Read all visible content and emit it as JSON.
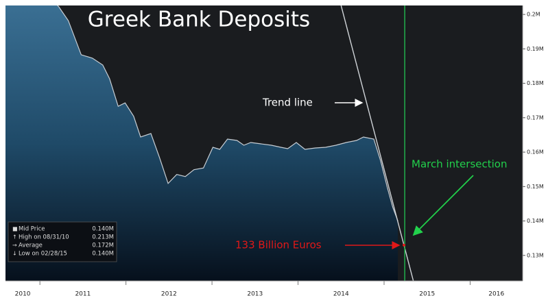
{
  "chart_data": {
    "type": "area",
    "title": "Greek Bank Deposits",
    "series": [
      {
        "name": "Mid Price",
        "color": "#c8ced4",
        "x": [
          2010.6,
          2011.02,
          2011.22,
          2011.33,
          2011.48,
          2011.61,
          2011.73,
          2011.81,
          2011.91,
          2011.99,
          2012.09,
          2012.17,
          2012.29,
          2012.39,
          2012.49,
          2012.59,
          2012.69,
          2012.79,
          2012.9,
          2013.01,
          2013.09,
          2013.18,
          2013.29,
          2013.37,
          2013.45,
          2013.57,
          2013.69,
          2013.8,
          2013.88,
          2013.98,
          2014.08,
          2014.2,
          2014.32,
          2014.44,
          2014.56,
          2014.68,
          2014.76,
          2014.88,
          2014.96,
          2015.04,
          2015.1,
          2015.16
        ],
        "values": [
          0.2102,
          0.2075,
          0.2022,
          0.1982,
          0.1883,
          0.1873,
          0.1853,
          0.1813,
          0.1733,
          0.1743,
          0.1704,
          0.1644,
          0.1654,
          0.1584,
          0.1509,
          0.1535,
          0.1529,
          0.1549,
          0.1554,
          0.1614,
          0.1608,
          0.1638,
          0.1634,
          0.162,
          0.1628,
          0.1624,
          0.162,
          0.1614,
          0.161,
          0.1628,
          0.1608,
          0.1612,
          0.1614,
          0.162,
          0.1628,
          0.1634,
          0.1644,
          0.1638,
          0.1574,
          0.1495,
          0.144,
          0.14
        ]
      }
    ],
    "trend_line": {
      "name": "Trend line",
      "color": "#d0d4d8",
      "x": [
        2014.5,
        2015.34
      ],
      "values": [
        0.2026,
        0.1226
      ]
    },
    "marker_line": {
      "name": "March intersection",
      "color": "#22b14c",
      "x": 2015.24
    },
    "annotation": {
      "text": "133 Billion Euros",
      "color": "#e01818",
      "value": 0.133
    },
    "xlim": [
      2010.6,
      2016.61
    ],
    "ylim": [
      0.1226,
      0.2026
    ],
    "yticks": [
      {
        "value": 0.13,
        "label": "0.13M"
      },
      {
        "value": 0.14,
        "label": "0.14M"
      },
      {
        "value": 0.15,
        "label": "0.15M"
      },
      {
        "value": 0.16,
        "label": "0.16M"
      },
      {
        "value": 0.17,
        "label": "0.17M"
      },
      {
        "value": 0.18,
        "label": "0.18M"
      },
      {
        "value": 0.19,
        "label": "0.19M"
      },
      {
        "value": 0.2,
        "label": "0.2M"
      }
    ],
    "xticks": [
      {
        "value": 2010.5,
        "label": "2010"
      },
      {
        "value": 2011.5,
        "label": "2011"
      },
      {
        "value": 2012.5,
        "label": "2012"
      },
      {
        "value": 2013.5,
        "label": "2013"
      },
      {
        "value": 2014.5,
        "label": "2014"
      },
      {
        "value": 2015.5,
        "label": "2015"
      },
      {
        "value": 2016.5,
        "label": "2016"
      }
    ],
    "grid": false,
    "legend_stats": [
      [
        "Mid Price",
        "0.140M"
      ],
      [
        "High on 08/31/10",
        "0.213M"
      ],
      [
        "Average",
        "0.172M"
      ],
      [
        "Low on 02/28/15",
        "0.140M"
      ]
    ]
  }
}
